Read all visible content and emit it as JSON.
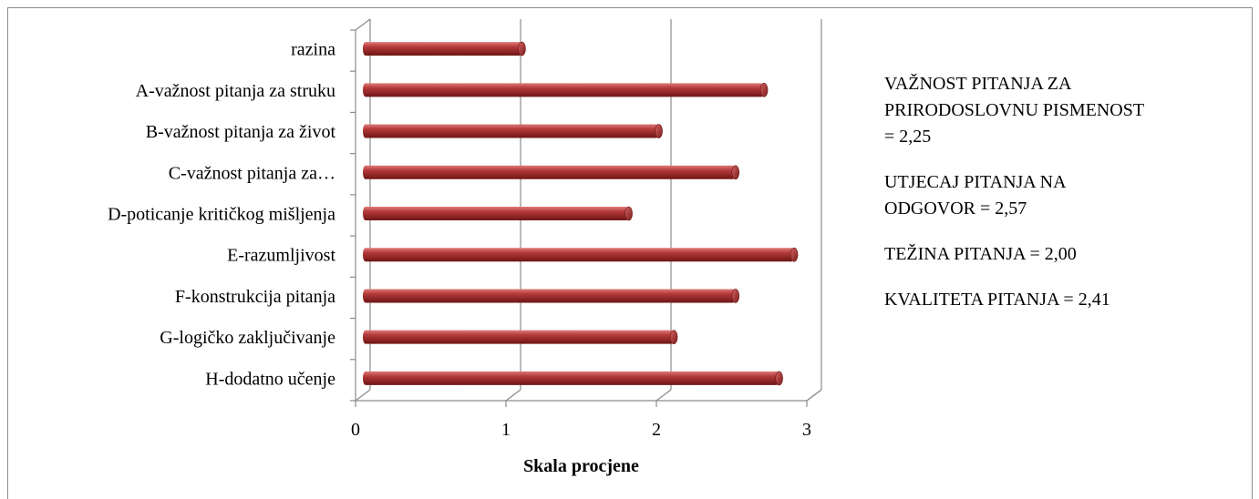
{
  "chart_data": {
    "type": "bar",
    "orientation": "horizontal",
    "categories": [
      "razina",
      "A-važnost pitanja za struku",
      "B-važnost pitanja za život",
      "C-važnost pitanja za…",
      "D-poticanje kritičkog mišljenja",
      "E-razumljivost",
      "F-konstrukcija pitanja",
      "G-logičko zaključivanje",
      "H-dodatno učenje"
    ],
    "values": [
      1.13,
      2.74,
      2.04,
      2.55,
      1.84,
      2.94,
      2.55,
      2.14,
      2.84
    ],
    "xlabel": "Skala procjene",
    "ylabel": "",
    "xlim": [
      0,
      3
    ],
    "xticks": [
      "0",
      "1",
      "2",
      "3"
    ],
    "grid": true,
    "bar_color": "#a93232"
  },
  "notes": [
    [
      "VAŽNOST PITANJA ZA",
      "PRIRODOSLOVNU PISMENOST",
      "= 2,25"
    ],
    [
      "UTJECAJ PITANJA NA",
      "ODGOVOR = 2,57"
    ],
    [
      "TEŽINA PITANJA = 2,00"
    ],
    [
      "KVALITETA PITANJA = 2,41"
    ]
  ]
}
